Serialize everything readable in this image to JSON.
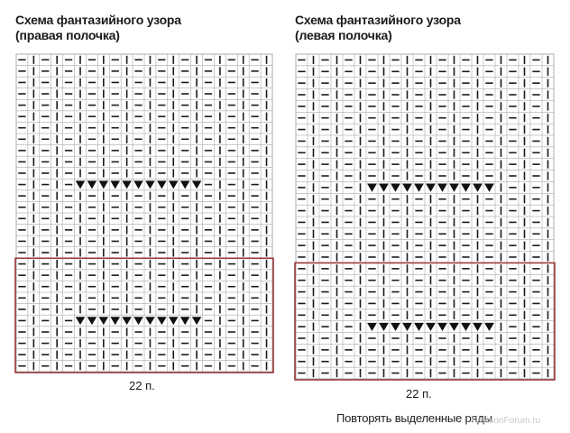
{
  "charts": [
    {
      "id": "right",
      "title_line1": "Схема фантазийного узора",
      "title_line2": "(правая полочка)",
      "stitch_count_label": "22 п.",
      "columns": 22,
      "rows": 28,
      "repeat_rows": {
        "from": 19,
        "to": 28
      },
      "decrease_rows": [
        12,
        24
      ],
      "decrease_columns": {
        "from": 6,
        "to": 16
      },
      "purl_columns": [
        1,
        3,
        5,
        7,
        9,
        11,
        13,
        15,
        17,
        19,
        21
      ],
      "knit_columns": [
        2,
        4,
        6,
        8,
        10,
        12,
        14,
        16,
        18,
        20,
        22
      ]
    },
    {
      "id": "left",
      "title_line1": "Схема фантазийного узора",
      "title_line2": "(левая полочка)",
      "stitch_count_label": "22 п.",
      "columns": 22,
      "rows": 28,
      "repeat_rows": {
        "from": 19,
        "to": 28
      },
      "decrease_rows": [
        12,
        24
      ],
      "decrease_columns": {
        "from": 7,
        "to": 17
      },
      "purl_columns": [
        1,
        3,
        5,
        7,
        9,
        11,
        13,
        15,
        17,
        19,
        21
      ],
      "knit_columns": [
        2,
        4,
        6,
        8,
        10,
        12,
        14,
        16,
        18,
        20,
        22
      ]
    }
  ],
  "footer_note": "Повторять выделенные ряды",
  "watermark": "FashionForum.ru",
  "colors": {
    "grid_line": "#9a9a9a",
    "purl_dash": "#1a1a1a",
    "knit_bar": "#1a1a1a",
    "decrease_triangle": "#111111",
    "repeat_frame": "#9b3a3a",
    "text": "#1a1a1a"
  }
}
